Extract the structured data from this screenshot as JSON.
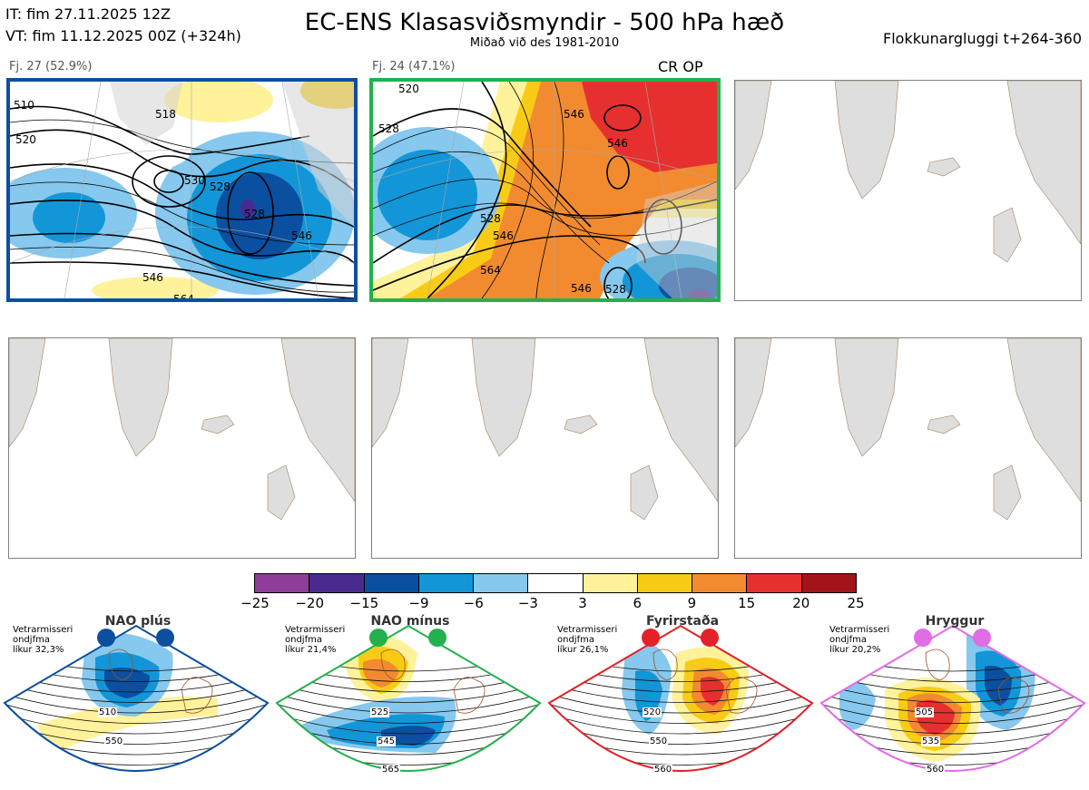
{
  "header": {
    "it_line": "IT: fim 27.11.2025 12Z",
    "vt_line": "VT: fim 11.12.2025 00Z  (+324h)",
    "title": "EC-ENS Klasasviðsmyndir - 500 hPa hæð",
    "subtitle": "Miðað við des 1981-2010",
    "window": "Flokkunargluggi t+264-360"
  },
  "panels": [
    {
      "label": "Fj. 27 (52.9%)",
      "regime_color": "#0b4fa0",
      "regime": "NAO plús",
      "contours": [
        "510",
        "518",
        "520",
        "528",
        "530",
        "528",
        "546",
        "546",
        "564"
      ]
    },
    {
      "label": "Fj. 24 (47.1%)",
      "regime_color": "#22b14c",
      "regime": "NAO mínus",
      "tag": "CR OP",
      "contours": [
        "520",
        "528",
        "546",
        "546",
        "564",
        "546",
        "528",
        "546",
        "528"
      ]
    }
  ],
  "colorbar": {
    "colors": [
      "#8f3f97",
      "#4b2a8f",
      "#0b4fa0",
      "#1296d8",
      "#86c8ee",
      "#ffffff",
      "#fff29a",
      "#f8cc16",
      "#f28b30",
      "#e63030",
      "#a3141b"
    ],
    "ticks": [
      "−25",
      "−20",
      "−15",
      "−9",
      "−6",
      "−3",
      "3",
      "6",
      "9",
      "15",
      "20",
      "25"
    ]
  },
  "regimes": [
    {
      "name": "NAO plús",
      "info_line1": "Vetrarmisseri",
      "info_line2": "ondjfma",
      "info_line3": "líkur 32,3%",
      "color": "#0b4fa0",
      "labels": [
        "510",
        "550"
      ]
    },
    {
      "name": "NAO mínus",
      "info_line1": "Vetrarmisseri",
      "info_line2": "ondjfma",
      "info_line3": "líkur 21,4%",
      "color": "#22b14c",
      "labels": [
        "525",
        "545",
        "565"
      ]
    },
    {
      "name": "Fyrirstaða",
      "info_line1": "Vetrarmisseri",
      "info_line2": "ondjfma",
      "info_line3": "líkur 26,1%",
      "color": "#e22228",
      "labels": [
        "520",
        "550",
        "560"
      ]
    },
    {
      "name": "Hryggur",
      "info_line1": "Vetrarmisseri",
      "info_line2": "ondjfma",
      "info_line3": "líkur 20,2%",
      "color": "#e06ce6",
      "labels": [
        "505",
        "535",
        "560"
      ]
    }
  ]
}
